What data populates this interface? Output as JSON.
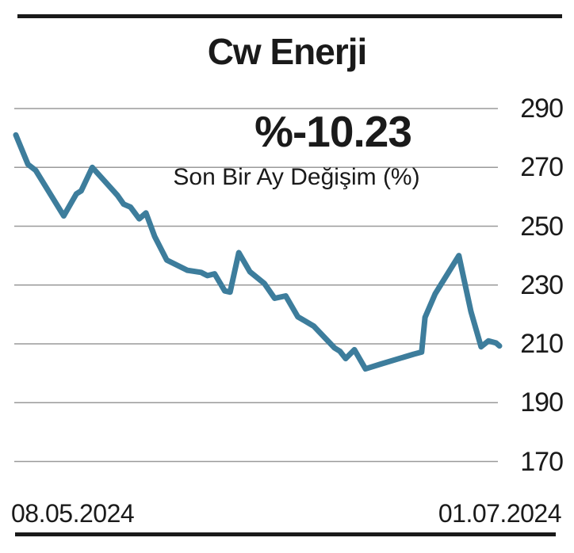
{
  "header": {
    "title": "Cw Enerji"
  },
  "chart_data": {
    "type": "line",
    "title": "Cw Enerji",
    "change_value": "%-10.23",
    "subtitle": "Son Bir Ay Değişim (%)",
    "legend": "none",
    "grid": true,
    "x_axis": {
      "start_label": "08.05.2024",
      "end_label": "01.07.2024"
    },
    "y_axis": {
      "ticks": [
        290,
        270,
        250,
        230,
        210,
        190,
        170
      ],
      "min": 170,
      "max": 290,
      "tick_side": "right"
    },
    "colors": {
      "line": "#3d7d9c",
      "grid": "#9a9a9a",
      "text": "#1a1a1a"
    },
    "series": [
      {
        "name": "Cw Enerji",
        "points": [
          [
            0.0,
            281.0
          ],
          [
            0.025,
            271.0
          ],
          [
            0.041,
            269.0
          ],
          [
            0.099,
            253.5
          ],
          [
            0.125,
            261.0
          ],
          [
            0.135,
            262.0
          ],
          [
            0.158,
            270.0
          ],
          [
            0.21,
            260.5
          ],
          [
            0.223,
            257.5
          ],
          [
            0.237,
            256.5
          ],
          [
            0.255,
            252.5
          ],
          [
            0.269,
            254.5
          ],
          [
            0.287,
            246.5
          ],
          [
            0.312,
            238.5
          ],
          [
            0.355,
            235.0
          ],
          [
            0.383,
            234.3
          ],
          [
            0.396,
            233.2
          ],
          [
            0.411,
            233.8
          ],
          [
            0.432,
            228.0
          ],
          [
            0.443,
            227.6
          ],
          [
            0.461,
            241.0
          ],
          [
            0.484,
            234.5
          ],
          [
            0.514,
            230.5
          ],
          [
            0.535,
            225.5
          ],
          [
            0.558,
            226.3
          ],
          [
            0.583,
            219.2
          ],
          [
            0.616,
            216.0
          ],
          [
            0.659,
            208.6
          ],
          [
            0.67,
            207.5
          ],
          [
            0.682,
            205.0
          ],
          [
            0.7,
            208.0
          ],
          [
            0.723,
            201.5
          ],
          [
            0.752,
            203.0
          ],
          [
            0.823,
            206.5
          ],
          [
            0.839,
            207.2
          ],
          [
            0.846,
            219.0
          ],
          [
            0.867,
            227.0
          ],
          [
            0.916,
            240.0
          ],
          [
            0.941,
            221.0
          ],
          [
            0.962,
            209.0
          ],
          [
            0.977,
            211.0
          ],
          [
            0.993,
            210.3
          ],
          [
            1.0,
            209.3
          ]
        ]
      }
    ]
  }
}
